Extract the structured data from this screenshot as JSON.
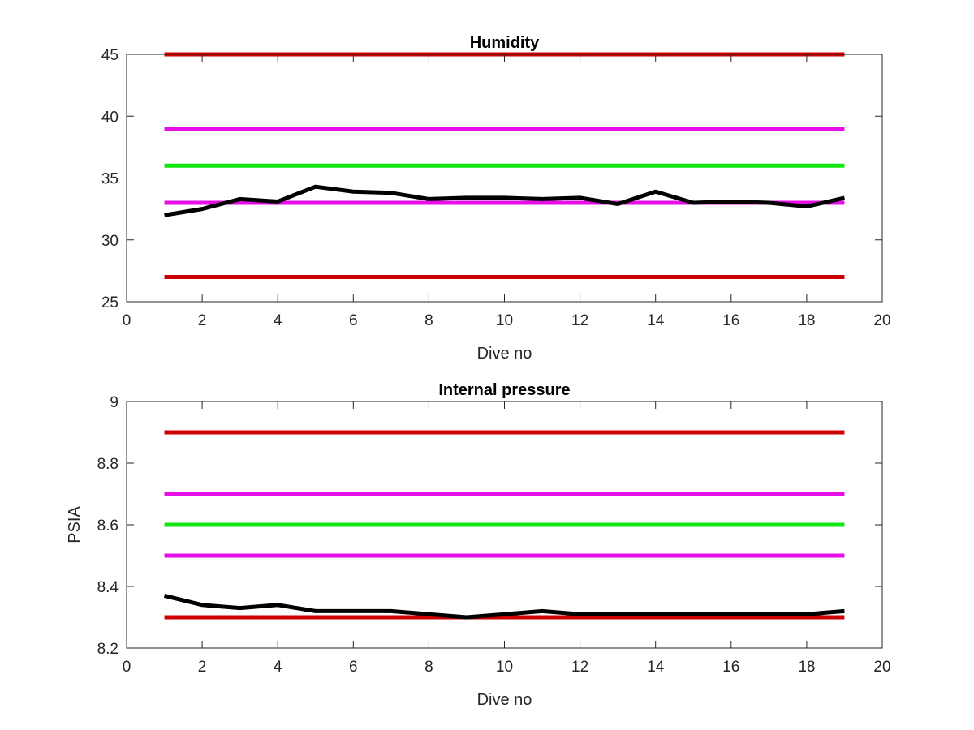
{
  "chart_data": [
    {
      "type": "line",
      "title": "Humidity",
      "xlabel": "Dive no",
      "ylabel": "",
      "xlim": [
        0,
        20
      ],
      "ylim": [
        25,
        45
      ],
      "xticks": [
        "0",
        "2",
        "4",
        "6",
        "8",
        "10",
        "12",
        "14",
        "16",
        "18",
        "20"
      ],
      "yticks": [
        "25",
        "30",
        "35",
        "40",
        "45"
      ],
      "grid": false,
      "series": [
        {
          "color": "#cc0000",
          "x": [
            1,
            19
          ],
          "y": [
            45,
            45
          ]
        },
        {
          "color": "#e60ee6",
          "x": [
            1,
            19
          ],
          "y": [
            39,
            39
          ]
        },
        {
          "color": "#14e614",
          "x": [
            1,
            19
          ],
          "y": [
            36,
            36
          ]
        },
        {
          "color": "#e60ee6",
          "x": [
            1,
            19
          ],
          "y": [
            33,
            33
          ]
        },
        {
          "color": "#cc0000",
          "x": [
            1,
            19
          ],
          "y": [
            27,
            27
          ]
        },
        {
          "color": "#000000",
          "x": [
            1,
            2,
            3,
            4,
            5,
            6,
            7,
            8,
            9,
            10,
            11,
            12,
            13,
            14,
            15,
            16,
            17,
            18,
            19
          ],
          "y": [
            32.0,
            32.5,
            33.3,
            33.1,
            34.3,
            33.9,
            33.8,
            33.3,
            33.4,
            33.4,
            33.3,
            33.4,
            32.9,
            33.9,
            33.0,
            33.1,
            33.0,
            32.7,
            33.4
          ]
        }
      ]
    },
    {
      "type": "line",
      "title": "Internal pressure",
      "xlabel": "Dive no",
      "ylabel": "PSIA",
      "xlim": [
        0,
        20
      ],
      "ylim": [
        8.2,
        9
      ],
      "xticks": [
        "0",
        "2",
        "4",
        "6",
        "8",
        "10",
        "12",
        "14",
        "16",
        "18",
        "20"
      ],
      "yticks": [
        "8.2",
        "8.4",
        "8.6",
        "8.8",
        "9"
      ],
      "grid": false,
      "series": [
        {
          "color": "#cc0000",
          "x": [
            1,
            19
          ],
          "y": [
            8.9,
            8.9
          ]
        },
        {
          "color": "#e60ee6",
          "x": [
            1,
            19
          ],
          "y": [
            8.7,
            8.7
          ]
        },
        {
          "color": "#14e614",
          "x": [
            1,
            19
          ],
          "y": [
            8.6,
            8.6
          ]
        },
        {
          "color": "#e60ee6",
          "x": [
            1,
            19
          ],
          "y": [
            8.5,
            8.5
          ]
        },
        {
          "color": "#cc0000",
          "x": [
            1,
            19
          ],
          "y": [
            8.3,
            8.3
          ]
        },
        {
          "color": "#000000",
          "x": [
            1,
            2,
            3,
            4,
            5,
            6,
            7,
            8,
            9,
            10,
            11,
            12,
            13,
            14,
            15,
            16,
            17,
            18,
            19
          ],
          "y": [
            8.37,
            8.34,
            8.33,
            8.34,
            8.32,
            8.32,
            8.32,
            8.31,
            8.3,
            8.31,
            8.32,
            8.31,
            8.31,
            8.31,
            8.31,
            8.31,
            8.31,
            8.31,
            8.32
          ]
        }
      ]
    }
  ]
}
